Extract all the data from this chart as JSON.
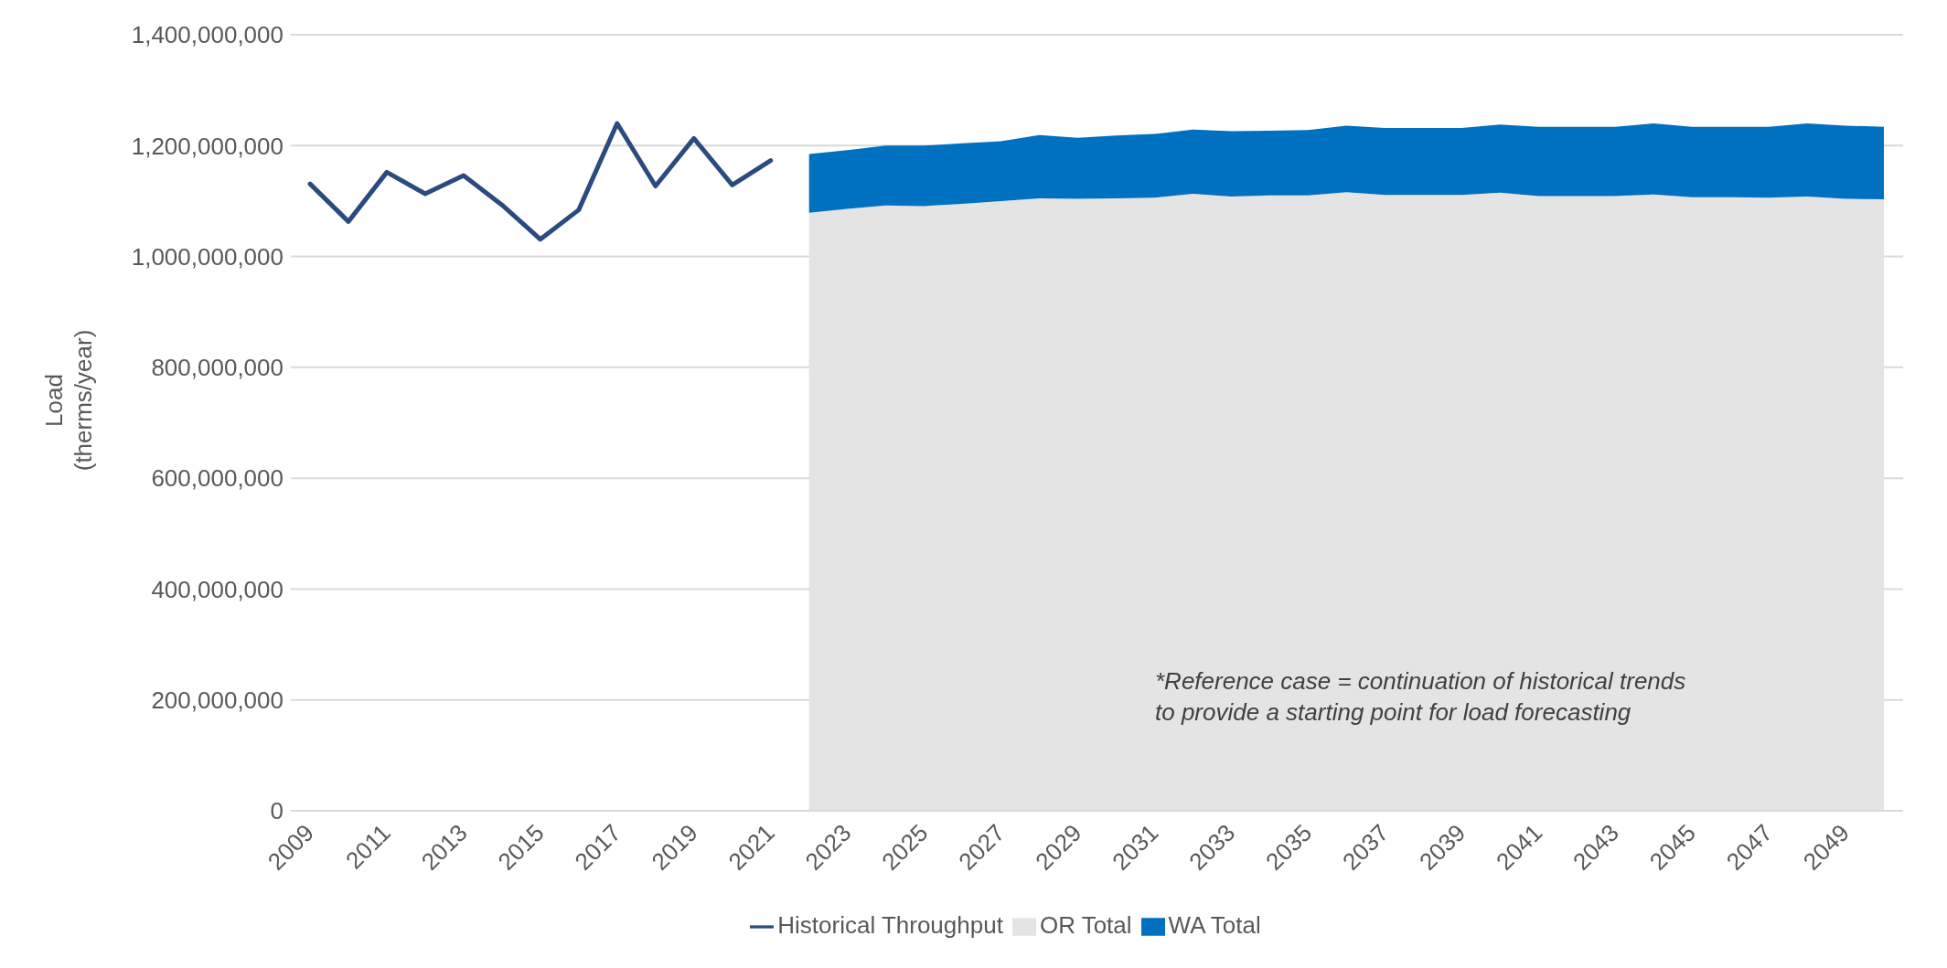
{
  "chart_data": {
    "type": "area",
    "stacked": true,
    "ylabel": "Load\n(therms/year)",
    "categories": [
      "2009",
      null,
      "2011",
      null,
      "2013",
      null,
      "2015",
      null,
      "2017",
      null,
      "2019",
      null,
      "2021",
      null,
      "2023",
      null,
      "2025",
      null,
      "2027",
      null,
      "2029",
      null,
      "2031",
      null,
      "2033",
      null,
      "2035",
      null,
      "2037",
      null,
      "2039",
      null,
      "2041",
      null,
      "2043",
      null,
      "2045",
      null,
      "2047",
      null,
      "2049",
      null
    ],
    "series": [
      {
        "name": "OR Total",
        "color": "#e4e4e4",
        "values": [
          null,
          null,
          null,
          null,
          null,
          null,
          null,
          null,
          null,
          null,
          null,
          null,
          null,
          1079000000,
          1086000000,
          1092000000,
          1091000000,
          1095000000,
          1100000000,
          1105000000,
          1104000000,
          1105000000,
          1106000000,
          1113000000,
          1108000000,
          1110000000,
          1110000000,
          1116000000,
          1111000000,
          1111000000,
          1111000000,
          1115000000,
          1109000000,
          1109000000,
          1109000000,
          1112000000,
          1107000000,
          1107000000,
          1106000000,
          1108000000,
          1104000000,
          1103000000
        ]
      },
      {
        "name": "WA Total",
        "color": "#0070c0",
        "values": [
          null,
          null,
          null,
          null,
          null,
          null,
          null,
          null,
          null,
          null,
          null,
          null,
          null,
          106000000,
          106000000,
          108000000,
          109000000,
          109000000,
          108000000,
          114000000,
          110000000,
          113000000,
          115000000,
          116000000,
          118000000,
          117000000,
          118000000,
          120000000,
          121000000,
          121000000,
          121000000,
          123000000,
          125000000,
          125000000,
          125000000,
          128000000,
          127000000,
          127000000,
          128000000,
          132000000,
          132000000,
          131000000
        ]
      },
      {
        "name": "Historical Throughput",
        "type": "line",
        "color": "#2b4a7e",
        "values": [
          1131000000,
          1063000000,
          1152000000,
          1113000000,
          1146000000,
          1093000000,
          1031000000,
          1084000000,
          1240000000,
          1127000000,
          1213000000,
          1129000000,
          1173000000,
          null,
          null,
          null,
          null,
          null,
          null,
          null,
          null,
          null,
          null,
          null,
          null,
          null,
          null,
          null,
          null,
          null,
          null,
          null,
          null,
          null,
          null,
          null,
          null,
          null,
          null,
          null,
          null,
          null
        ]
      }
    ],
    "ylim": [
      0,
      1400000000
    ],
    "yticks": [
      0,
      {
        "value": 200000000,
        "label": "200,000,000"
      },
      {
        "value": 400000000,
        "label": "400,000,000"
      },
      {
        "value": 600000000,
        "label": "600,000,000"
      },
      {
        "value": 800000000,
        "label": "800,000,000"
      },
      {
        "value": 1000000000,
        "label": "1,000,000,000"
      },
      {
        "value": 1200000000,
        "label": "1,200,000,000"
      },
      {
        "value": 1400000000,
        "label": "1,400,000,000"
      }
    ],
    "grid": "y",
    "legend": "bottom",
    "marker": "none",
    "annotations": [
      "*Reference case = continuation of historical trends\nto provide a starting point for load forecasting"
    ]
  }
}
